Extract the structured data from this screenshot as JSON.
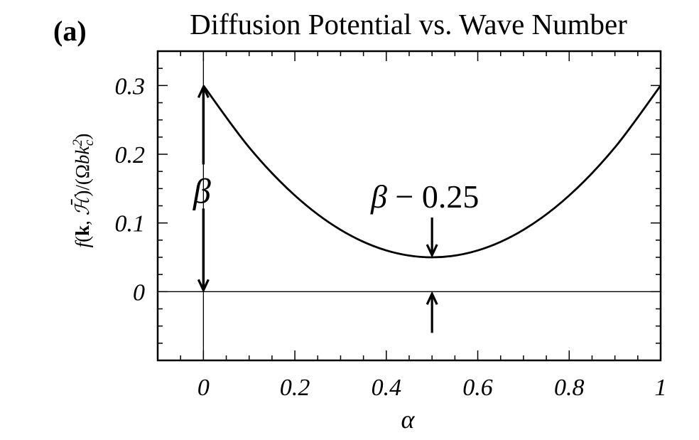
{
  "chart_data": {
    "type": "line",
    "panel_label": "(a)",
    "title": "Diffusion Potential vs. Wave Number",
    "xlabel": "α",
    "ylabel": "f(k, ℋ̄)/(Ωbk_c²)",
    "xlim": [
      -0.1,
      1.0
    ],
    "ylim": [
      -0.1,
      0.35
    ],
    "x_ticks": [
      0,
      0.2,
      0.4,
      0.6,
      0.8,
      1
    ],
    "x_tick_labels": [
      "0",
      "0.2",
      "0.4",
      "0.6",
      "0.8",
      "1"
    ],
    "y_ticks": [
      0,
      0.1,
      0.2,
      0.3
    ],
    "y_tick_labels": [
      "0",
      "0.1",
      "0.2",
      "0.3"
    ],
    "grid": false,
    "series": [
      {
        "x": [
          0,
          0.1,
          0.2,
          0.3,
          0.4,
          0.5,
          0.6,
          0.7,
          0.8,
          0.9,
          1.0
        ],
        "y": [
          0.3,
          0.21,
          0.14,
          0.09,
          0.06,
          0.05,
          0.06,
          0.09,
          0.14,
          0.21,
          0.3
        ]
      }
    ],
    "reference_lines": [
      {
        "orientation": "horizontal",
        "value": 0
      },
      {
        "orientation": "vertical",
        "value": 0
      }
    ],
    "annotations": [
      {
        "text": "β",
        "kind": "double-arrow",
        "x": 0,
        "from": 0,
        "to": 0.3
      },
      {
        "text": "β − 0.25",
        "kind": "gap-arrows",
        "x": 0.5,
        "from": 0,
        "to": 0.05
      }
    ]
  }
}
